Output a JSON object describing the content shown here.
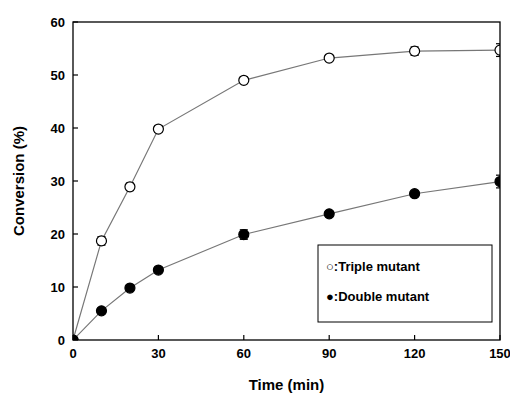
{
  "chart_data": {
    "type": "line",
    "x_label": "Time (min)",
    "y_label": "Conversion (%)",
    "x": [
      0,
      10,
      20,
      30,
      60,
      90,
      120,
      150
    ],
    "series": [
      {
        "name": "○:Triple mutant",
        "color": "#000000",
        "marker": "open-circle",
        "line_style": "solid",
        "values": [
          0,
          18.7,
          28.9,
          39.8,
          49.0,
          53.2,
          54.5,
          54.7
        ],
        "error": [
          0,
          0.8,
          0.7,
          0.6,
          0.6,
          0.4,
          0.8,
          1.2
        ]
      },
      {
        "name": "●:Double mutant",
        "color": "#000000",
        "marker": "filled-circle",
        "line_style": "solid",
        "values": [
          0,
          5.5,
          9.8,
          13.2,
          19.9,
          23.8,
          27.6,
          29.9
        ],
        "error": [
          0,
          0.3,
          0.4,
          0.4,
          0.9,
          0.4,
          0.4,
          1.2
        ]
      }
    ],
    "xlim": [
      0,
      150
    ],
    "xticks": [
      0,
      30,
      60,
      90,
      120,
      150
    ],
    "ylim": [
      0,
      60
    ],
    "yticks": [
      0,
      10,
      20,
      30,
      40,
      50,
      60
    ],
    "grid": false,
    "legend": "lower right"
  }
}
